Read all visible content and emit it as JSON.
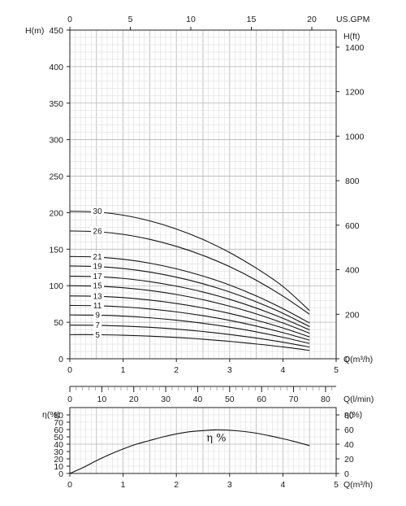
{
  "chart_data": [
    {
      "type": "line",
      "title": "",
      "xlabel": "Q(m³/h)",
      "ylabel": "H(m)",
      "ylabel_right": "H(ft)",
      "xlabel_top": "US.GPM",
      "xlim": [
        0,
        5
      ],
      "ylim": [
        0,
        450
      ],
      "x_ticks": [
        0,
        1,
        2,
        3,
        4,
        5
      ],
      "y_ticks": [
        0,
        50,
        100,
        150,
        200,
        250,
        300,
        350,
        400,
        450
      ],
      "top_ticks": [
        0,
        5,
        10,
        15,
        20
      ],
      "right_ticks": [
        0,
        200,
        400,
        600,
        800,
        1000,
        1200,
        1400
      ],
      "grid": true,
      "series": [
        {
          "name": "5",
          "x": [
            0,
            0.5,
            1,
            1.5,
            2,
            2.5,
            3,
            3.5,
            4,
            4.5
          ],
          "y": [
            33,
            33,
            32.2,
            31,
            29.2,
            26.8,
            23.8,
            20.2,
            16.2,
            11.5
          ]
        },
        {
          "name": "7",
          "x": [
            0,
            0.5,
            1,
            1.5,
            2,
            2.5,
            3,
            3.5,
            4,
            4.5
          ],
          "y": [
            46,
            45.8,
            44.8,
            43.1,
            40.6,
            37.3,
            33.2,
            28.3,
            22.6,
            16
          ]
        },
        {
          "name": "9",
          "x": [
            0,
            0.5,
            1,
            1.5,
            2,
            2.5,
            3,
            3.5,
            4,
            4.5
          ],
          "y": [
            60,
            59.7,
            58.4,
            56.1,
            52.8,
            48.5,
            43.2,
            36.8,
            29.4,
            21
          ]
        },
        {
          "name": "11",
          "x": [
            0,
            0.5,
            1,
            1.5,
            2,
            2.5,
            3,
            3.5,
            4,
            4.5
          ],
          "y": [
            73,
            72.6,
            71,
            68.2,
            64.2,
            59,
            52.6,
            44.8,
            35.8,
            25.5
          ]
        },
        {
          "name": "13",
          "x": [
            0,
            0.5,
            1,
            1.5,
            2,
            2.5,
            3,
            3.5,
            4,
            4.5
          ],
          "y": [
            86,
            85.6,
            83.7,
            80.4,
            75.7,
            69.6,
            62,
            52.8,
            42.2,
            30
          ]
        },
        {
          "name": "15",
          "x": [
            0,
            0.5,
            1,
            1.5,
            2,
            2.5,
            3,
            3.5,
            4,
            4.5
          ],
          "y": [
            100,
            99.5,
            97.3,
            93.5,
            88,
            80.9,
            72,
            61.4,
            49,
            35
          ]
        },
        {
          "name": "17",
          "x": [
            0,
            0.5,
            1,
            1.5,
            2,
            2.5,
            3,
            3.5,
            4,
            4.5
          ],
          "y": [
            113,
            112.4,
            110,
            105.6,
            99.4,
            91.4,
            81.4,
            69.4,
            55.4,
            39.5
          ]
        },
        {
          "name": "19",
          "x": [
            0,
            0.5,
            1,
            1.5,
            2,
            2.5,
            3,
            3.5,
            4,
            4.5
          ],
          "y": [
            127,
            126.3,
            123.6,
            118.7,
            111.7,
            102.7,
            91.5,
            78,
            62.3,
            44
          ]
        },
        {
          "name": "21",
          "x": [
            0,
            0.5,
            1,
            1.5,
            2,
            2.5,
            3,
            3.5,
            4,
            4.5
          ],
          "y": [
            140,
            139.3,
            136.2,
            130.9,
            123.2,
            113.2,
            100.9,
            86,
            68.6,
            49
          ]
        },
        {
          "name": "26",
          "x": [
            0,
            0.5,
            1,
            1.5,
            2,
            2.5,
            3,
            3.5,
            4,
            4.5
          ],
          "y": [
            175,
            174,
            170.3,
            163.5,
            153.9,
            141.5,
            126.1,
            107.5,
            85.8,
            61
          ]
        },
        {
          "name": "30",
          "x": [
            0,
            0.5,
            1,
            1.5,
            2,
            2.5,
            3,
            3.5,
            4,
            4.5
          ],
          "y": [
            202,
            201,
            196.6,
            188.8,
            177.7,
            163.3,
            145.5,
            124.1,
            99,
            66
          ]
        }
      ]
    },
    {
      "type": "line",
      "title": "",
      "xlabel": "Q(l/min)",
      "xlim": [
        0,
        83.33
      ],
      "x_ticks": [
        0,
        10,
        20,
        30,
        40,
        50,
        60,
        70,
        80
      ],
      "grid": false,
      "series": []
    },
    {
      "type": "line",
      "title": "",
      "xlabel": "Q(m³/h)",
      "ylabel": "η(%)",
      "ylabel_right": "η(%)",
      "xlim": [
        0,
        5
      ],
      "ylim": [
        0,
        90
      ],
      "x_ticks": [
        0,
        1,
        2,
        3,
        4,
        5
      ],
      "y_ticks": [
        0,
        10,
        20,
        30,
        40,
        50,
        60,
        70,
        80
      ],
      "right_ticks": [
        0,
        20,
        40,
        60,
        80
      ],
      "grid": true,
      "annotation": "η %",
      "series": [
        {
          "name": "",
          "x": [
            0,
            0.25,
            0.5,
            0.75,
            1,
            1.25,
            1.5,
            1.75,
            2,
            2.25,
            2.5,
            2.75,
            3,
            3.25,
            3.5,
            3.75,
            4,
            4.25,
            4.5
          ],
          "y": [
            0,
            8,
            17.5,
            26,
            33.5,
            40,
            45,
            50,
            54,
            57,
            58.5,
            59.5,
            59,
            57.5,
            55,
            51.5,
            47.5,
            43,
            38
          ]
        }
      ]
    }
  ]
}
